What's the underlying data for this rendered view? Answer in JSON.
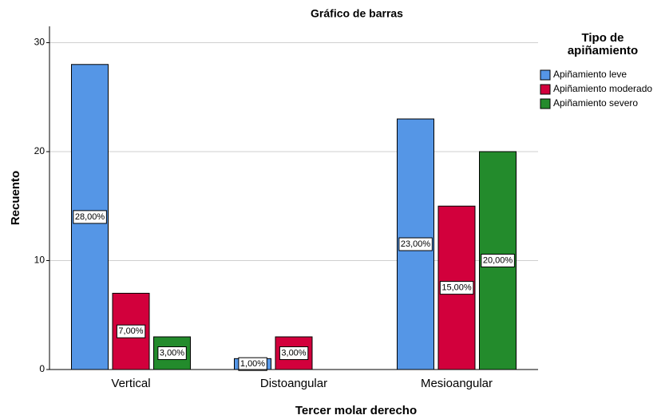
{
  "chart_data": {
    "type": "bar",
    "title": "Gráfico de barras",
    "x_label": "Tercer molar derecho",
    "y_label": "Recuento",
    "legend_title": "Tipo de apiñamiento",
    "legend": "right",
    "categories": [
      "Vertical",
      "Distoangular",
      "Mesioangular"
    ],
    "series": [
      {
        "name": "Apiñamiento leve",
        "color": "#5596e6",
        "values": [
          28,
          1,
          23
        ],
        "value_labels": [
          "28,00%",
          "1,00%",
          "23,00%"
        ]
      },
      {
        "name": "Apiñamiento moderado",
        "color": "#d2003c",
        "values": [
          7,
          3,
          15
        ],
        "value_labels": [
          "7,00%",
          "3,00%",
          "15,00%"
        ]
      },
      {
        "name": "Apiñamiento severo",
        "color": "#238b2c",
        "values": [
          3,
          0,
          20
        ],
        "value_labels": [
          "3,00%",
          null,
          "20,00%"
        ]
      }
    ],
    "ylim": [
      0,
      31.5
    ],
    "yticks": [
      0,
      10,
      20,
      30
    ],
    "grid": true
  }
}
